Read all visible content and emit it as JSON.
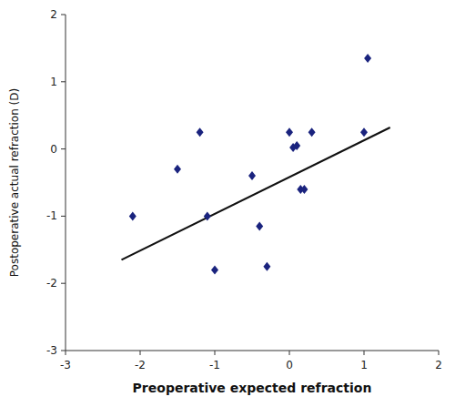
{
  "chart_data": {
    "type": "scatter",
    "xlabel": "Preoperative expected refraction",
    "ylabel": "Postoperative actual refraction (D)",
    "xlim": [
      -3,
      2
    ],
    "ylim": [
      -3,
      2
    ],
    "xticks": [
      -3,
      -2,
      -1,
      0,
      1,
      2
    ],
    "yticks": [
      -3,
      -2,
      -1,
      0,
      1,
      2
    ],
    "grid": false,
    "series": [
      {
        "type": "scatter",
        "color": "#1a237e",
        "marker": "diamond",
        "x": [
          -2.1,
          -1.5,
          -1.2,
          -1.1,
          -1.0,
          -0.5,
          -0.4,
          -0.3,
          0.0,
          0.05,
          0.1,
          0.15,
          0.2,
          0.3,
          1.0,
          1.05
        ],
        "values": [
          -1.0,
          -0.3,
          0.25,
          -1.0,
          -1.8,
          -0.4,
          -1.15,
          -1.75,
          0.25,
          0.02,
          0.05,
          -0.6,
          -0.6,
          0.25,
          0.25,
          1.35
        ]
      },
      {
        "type": "line",
        "color": "#111111",
        "x": [
          -2.25,
          1.35
        ],
        "values": [
          -1.65,
          0.32
        ]
      }
    ]
  }
}
